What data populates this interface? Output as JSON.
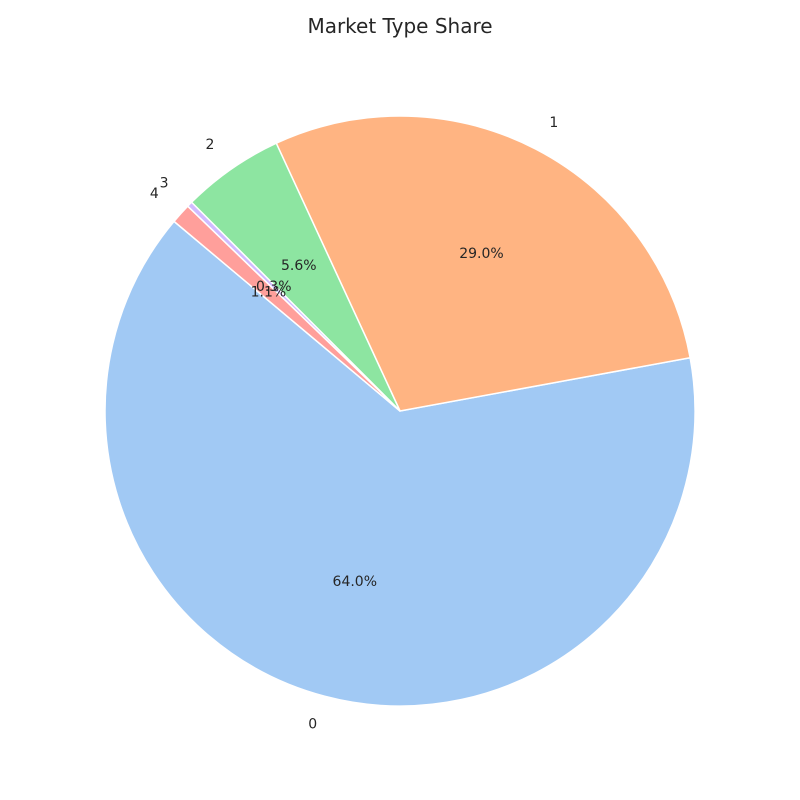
{
  "chart_data": {
    "type": "pie",
    "title": "Market Type Share",
    "categories": [
      "0",
      "1",
      "2",
      "3",
      "4"
    ],
    "values": [
      64.0,
      29.0,
      5.6,
      0.3,
      1.1
    ],
    "value_labels": [
      "64.0%",
      "29.0%",
      "5.6%",
      "0.3%",
      "1.1%"
    ],
    "colors": [
      "#a1c9f4",
      "#ffb482",
      "#8de5a1",
      "#d0bbff",
      "#ff9f9b"
    ],
    "start_angle_degrees": 140,
    "direction": "counterclockwise",
    "legend": "none"
  }
}
